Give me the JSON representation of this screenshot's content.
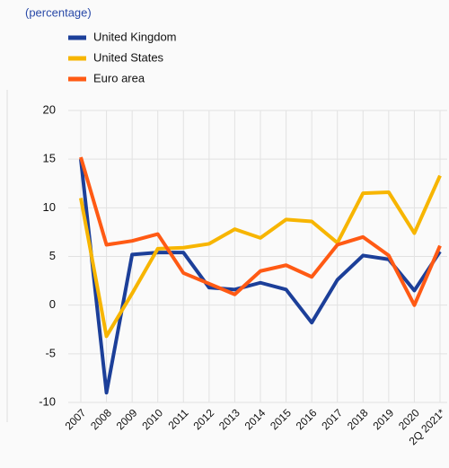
{
  "chart_data": {
    "type": "line",
    "subtitle": "(percentage)",
    "categories": [
      "2007",
      "2008",
      "2009",
      "2010",
      "2011",
      "2012",
      "2013",
      "2014",
      "2015",
      "2016",
      "2017",
      "2018",
      "2019",
      "2020",
      "2Q 2021*"
    ],
    "series": [
      {
        "name": "United Kingdom",
        "color": "#1c3f99",
        "values": [
          15,
          -9,
          5.2,
          5.4,
          5.4,
          1.8,
          1.6,
          2.3,
          1.6,
          -1.8,
          2.6,
          5.1,
          4.7,
          1.5,
          5.5
        ]
      },
      {
        "name": "United States",
        "color": "#f7b500",
        "values": [
          11,
          -3.2,
          1.2,
          5.8,
          5.9,
          6.3,
          7.8,
          6.9,
          8.8,
          8.6,
          6.4,
          11.5,
          11.6,
          7.4,
          13.3
        ]
      },
      {
        "name": "Euro area",
        "color": "#ff5a14",
        "values": [
          15.2,
          6.2,
          6.6,
          7.3,
          3.3,
          2.2,
          1.1,
          3.5,
          4.1,
          2.9,
          6.2,
          7.0,
          5.1,
          0,
          6.1
        ]
      }
    ],
    "ylim": [
      -10,
      20
    ],
    "yticks": [
      -10,
      -5,
      0,
      5,
      10,
      15,
      20
    ],
    "grid": true
  }
}
